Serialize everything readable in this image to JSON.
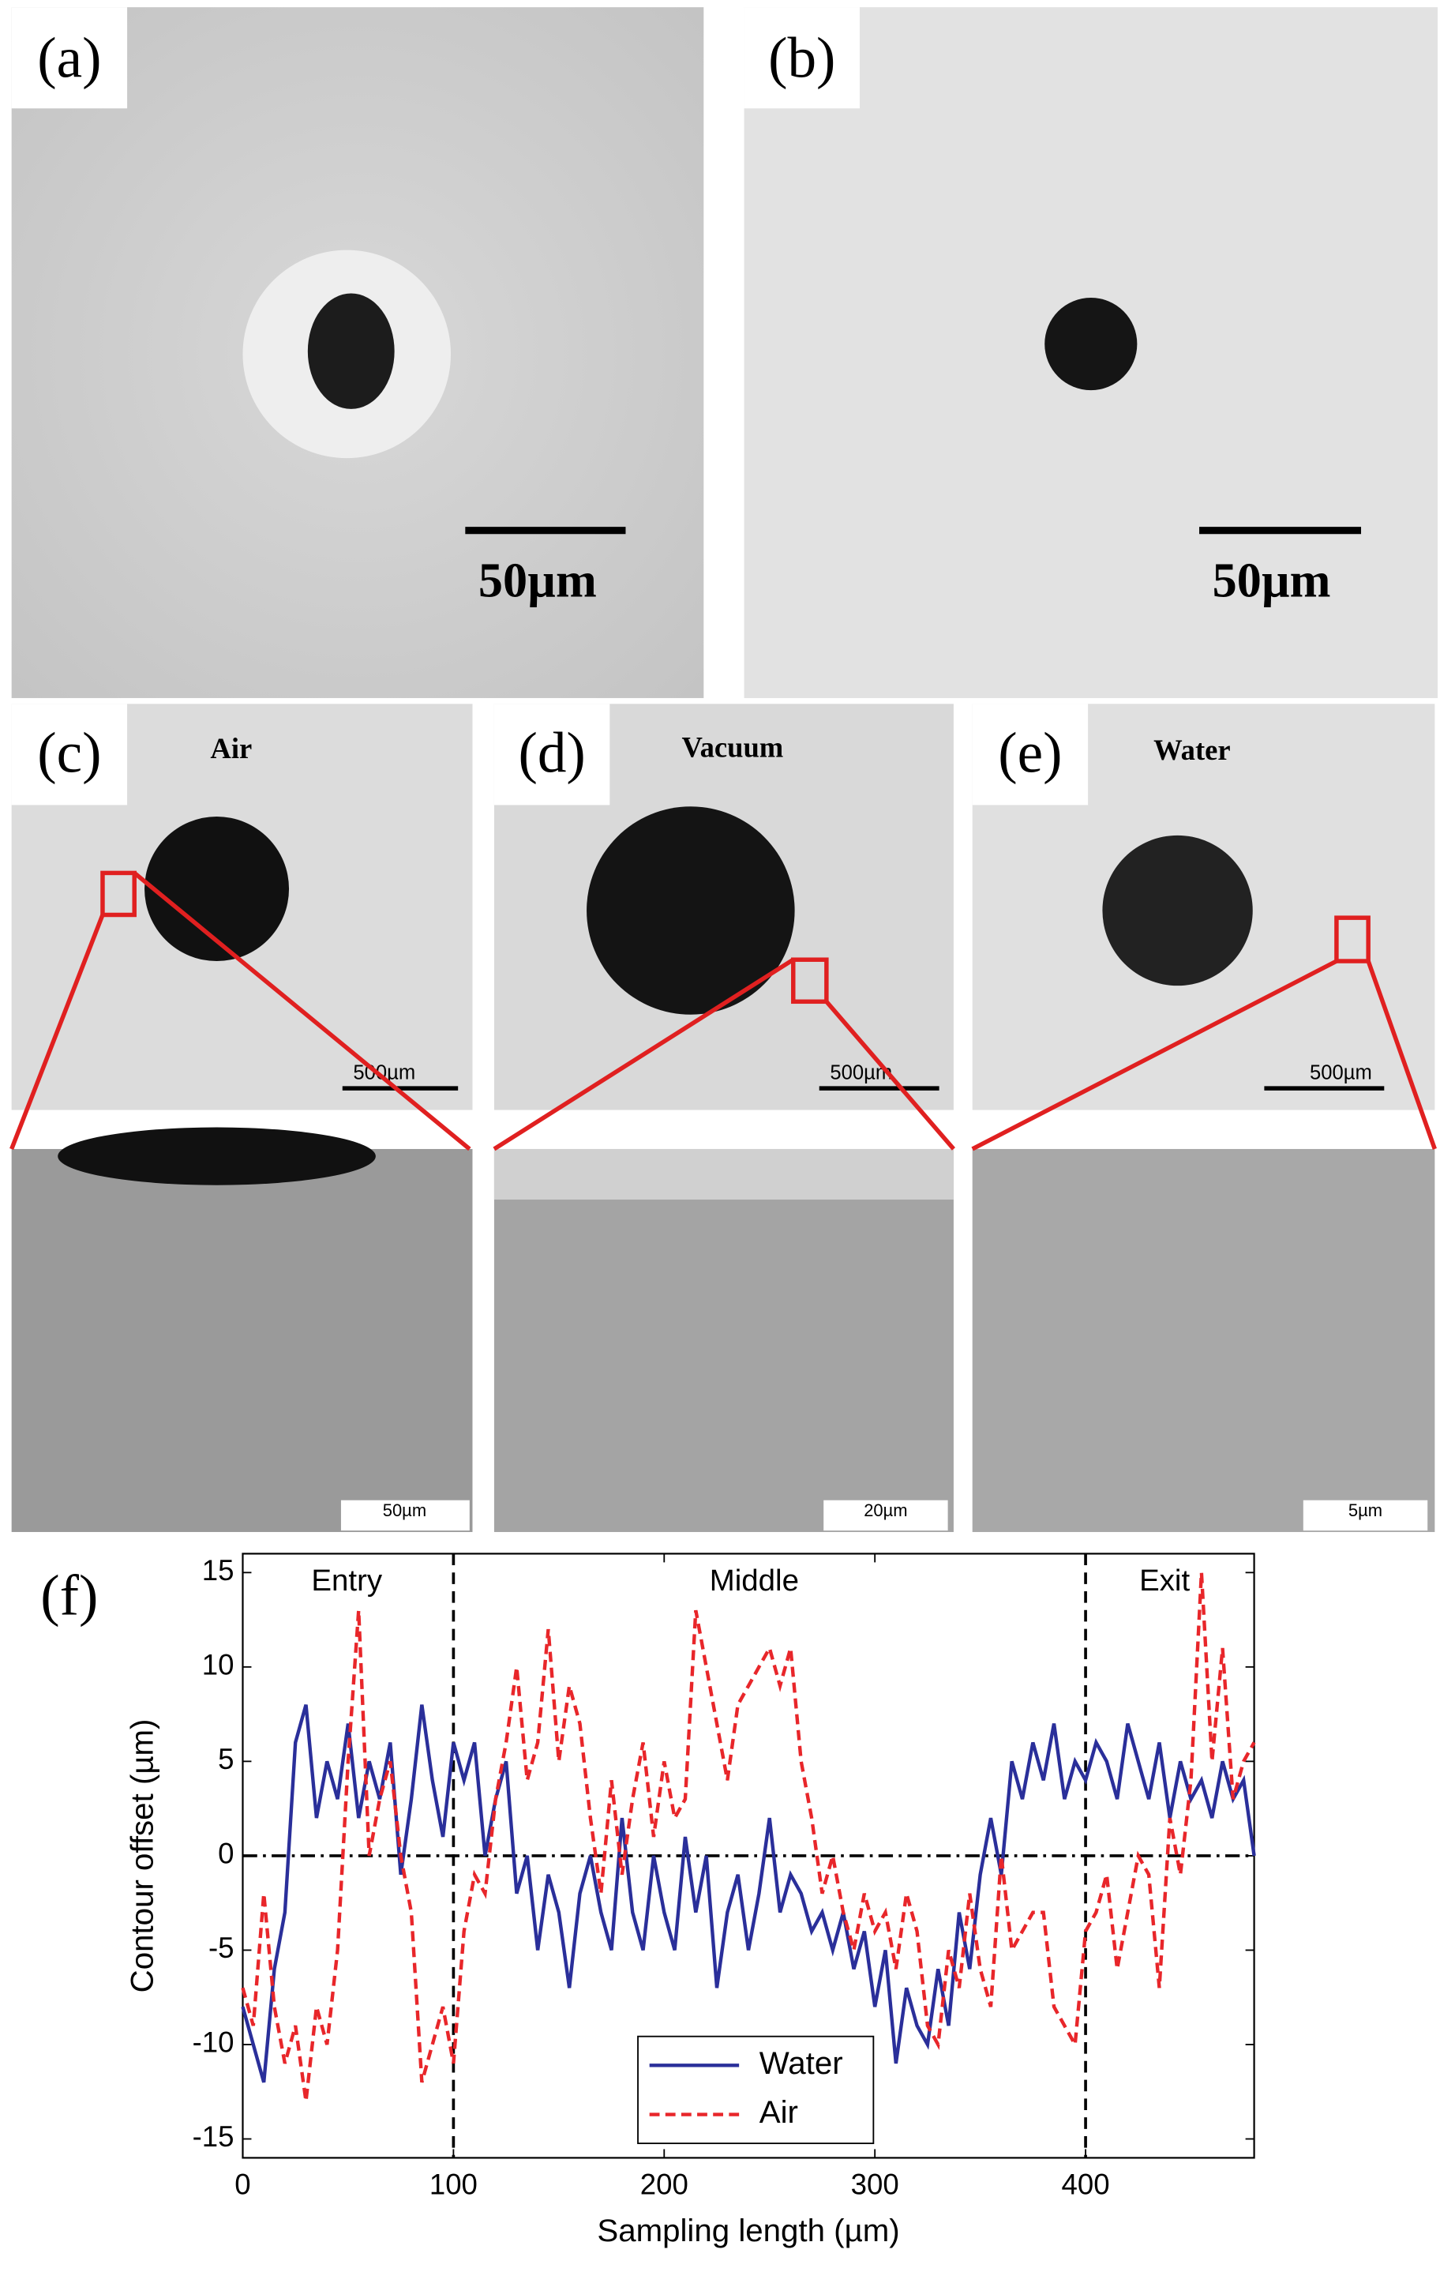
{
  "panels": [
    {
      "label": "(a)",
      "scale": "50µm"
    },
    {
      "label": "(b)",
      "scale": "50µm"
    },
    {
      "label": "(c)",
      "title": "Air",
      "scale": "500µm",
      "zoom_scale": "50µm"
    },
    {
      "label": "(d)",
      "title": "Vacuum",
      "scale": "500µm",
      "zoom_scale": "20µm"
    },
    {
      "label": "(e)",
      "title": "Water",
      "scale": "500µm",
      "zoom_scale": "5µm"
    }
  ],
  "chart_data": {
    "type": "line",
    "panel_label": "(f)",
    "xlabel": "Sampling length (µm)",
    "ylabel": "Contour offset (µm)",
    "annotations": [
      "Entry",
      "Middle",
      "Exit"
    ],
    "xlim": [
      0,
      480
    ],
    "ylim": [
      -16,
      16
    ],
    "xticks": [
      0,
      100,
      200,
      300,
      400
    ],
    "yticks": [
      -15,
      -10,
      -5,
      0,
      5,
      10,
      15
    ],
    "vlines": [
      100,
      400
    ],
    "hline": 0,
    "legend": "lower center",
    "x": [
      0,
      5,
      10,
      15,
      20,
      25,
      30,
      35,
      40,
      45,
      50,
      55,
      60,
      65,
      70,
      75,
      80,
      85,
      90,
      95,
      100,
      105,
      110,
      115,
      120,
      125,
      130,
      135,
      140,
      145,
      150,
      155,
      160,
      165,
      170,
      175,
      180,
      185,
      190,
      195,
      200,
      205,
      210,
      215,
      220,
      225,
      230,
      235,
      240,
      245,
      250,
      255,
      260,
      265,
      270,
      275,
      280,
      285,
      290,
      295,
      300,
      305,
      310,
      315,
      320,
      325,
      330,
      335,
      340,
      345,
      350,
      355,
      360,
      365,
      370,
      375,
      380,
      385,
      390,
      395,
      400,
      405,
      410,
      415,
      420,
      425,
      430,
      435,
      440,
      445,
      450,
      455,
      460,
      465,
      470,
      475,
      480
    ],
    "series": [
      {
        "name": "Water",
        "color": "#2a2f9a",
        "dash": "solid",
        "values": [
          -8,
          -10,
          -12,
          -6,
          -3,
          6,
          8,
          2,
          5,
          3,
          7,
          2,
          5,
          3,
          6,
          -1,
          3,
          8,
          4,
          1,
          6,
          4,
          6,
          0,
          3,
          5,
          -2,
          0,
          -5,
          -1,
          -3,
          -7,
          -2,
          0,
          -3,
          -5,
          2,
          -3,
          -5,
          0,
          -3,
          -5,
          1,
          -3,
          0,
          -7,
          -3,
          -1,
          -5,
          -2,
          2,
          -3,
          -1,
          -2,
          -4,
          -3,
          -5,
          -3,
          -6,
          -4,
          -8,
          -5,
          -11,
          -7,
          -9,
          -10,
          -6,
          -9,
          -3,
          -6,
          -1,
          2,
          -1,
          5,
          3,
          6,
          4,
          7,
          3,
          5,
          4,
          6,
          5,
          3,
          7,
          5,
          3,
          6,
          2,
          5,
          3,
          4,
          2,
          5,
          3,
          4,
          0
        ]
      },
      {
        "name": "Air",
        "color": "#e8262a",
        "dash": "dashed",
        "values": [
          -7,
          -9,
          -2,
          -8,
          -11,
          -9,
          -13,
          -8,
          -10,
          -5,
          5,
          13,
          0,
          3,
          5,
          0,
          -3,
          -12,
          -10,
          -8,
          -11,
          -4,
          -1,
          -2,
          3,
          6,
          10,
          4,
          6,
          12,
          5,
          9,
          7,
          2,
          -2,
          4,
          -1,
          3,
          6,
          1,
          5,
          2,
          3,
          13,
          10,
          7,
          4,
          8,
          9,
          10,
          11,
          9,
          11,
          5,
          2,
          -2,
          0,
          -3,
          -5,
          -2,
          -4,
          -3,
          -6,
          -2,
          -4,
          -9,
          -10,
          -5,
          -7,
          -2,
          -6,
          -8,
          0,
          -5,
          -4,
          -3,
          -3,
          -8,
          -9,
          -10,
          -4,
          -3,
          -1,
          -6,
          -3,
          0,
          -1,
          -7,
          2,
          -1,
          4,
          15,
          5,
          11,
          3,
          5,
          6
        ]
      }
    ]
  }
}
